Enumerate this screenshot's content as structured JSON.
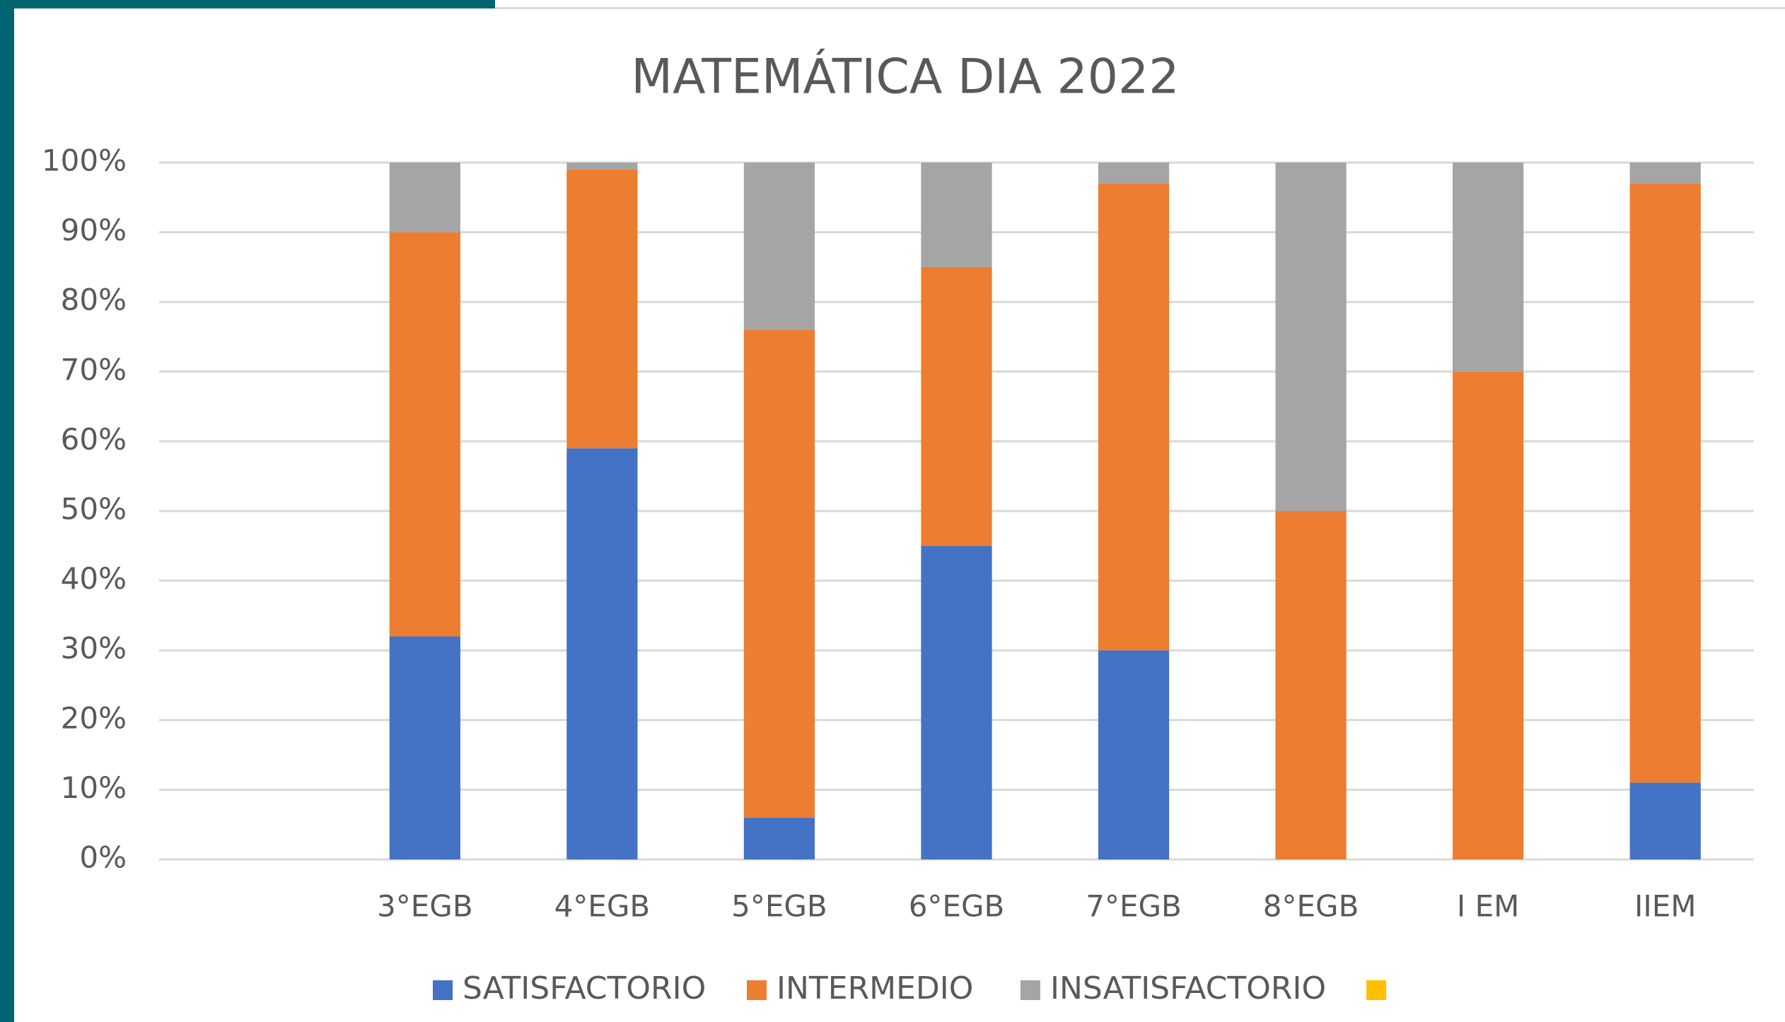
{
  "chart_data": {
    "type": "stacked_bar",
    "title": "MATEMÁTICA DIA 2022",
    "categories": [
      null,
      "3°EGB",
      "4°EGB",
      "5°EGB",
      "6°EGB",
      "7°EGB",
      "8°EGB",
      "I EM",
      "IIEM"
    ],
    "series": [
      {
        "name": "SATISFACTORIO",
        "color": "#4472c4",
        "values": [
          null,
          32,
          59,
          6,
          45,
          30,
          0,
          0,
          11
        ]
      },
      {
        "name": "INTERMEDIO",
        "color": "#ed7d31",
        "values": [
          null,
          58,
          40,
          70,
          40,
          67,
          50,
          70,
          86
        ]
      },
      {
        "name": "INSATISFACTORIO",
        "color": "#a5a5a5",
        "values": [
          null,
          10,
          1,
          24,
          15,
          3,
          50,
          30,
          3
        ]
      },
      {
        "color": "#ffc000",
        "values": [
          null,
          null,
          null,
          null,
          null,
          null,
          null,
          null,
          null
        ]
      }
    ],
    "ylim": [
      0,
      100
    ],
    "yticks": [
      {
        "value": 0,
        "label": "0%"
      },
      {
        "value": 10,
        "label": "10%"
      },
      {
        "value": 20,
        "label": "20%"
      },
      {
        "value": 30,
        "label": "30%"
      },
      {
        "value": 40,
        "label": "40%"
      },
      {
        "value": 50,
        "label": "50%"
      },
      {
        "value": 60,
        "label": "60%"
      },
      {
        "value": 70,
        "label": "70%"
      },
      {
        "value": 80,
        "label": "80%"
      },
      {
        "value": 90,
        "label": "90%"
      },
      {
        "value": 100,
        "label": "100%"
      }
    ],
    "grid": true,
    "legend": "bottom"
  }
}
